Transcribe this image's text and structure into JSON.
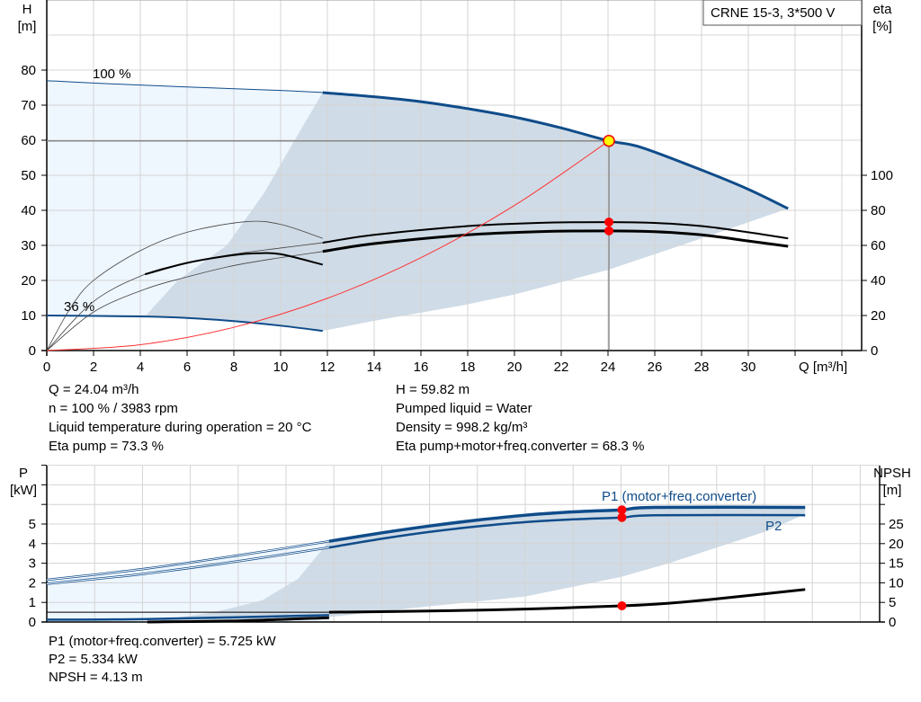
{
  "title_box": "CRNE 15-3, 3*500 V",
  "colors": {
    "curve_blue": "#0f4c8a",
    "shade_light": "#eef6fe",
    "shade_dark": "#cfdbe6",
    "grid": "#d4d4d4",
    "system_curve": "#ff3333",
    "op_point": "#ff0000",
    "duty_point_fill": "#ffff00"
  },
  "chart_data": [
    {
      "type": "line",
      "x_label": "Q [m³/h]",
      "y_label": "H",
      "y_unit": "[m]",
      "y2_label": "eta",
      "y2_unit": "[%]",
      "xlim": [
        0,
        35
      ],
      "ylim": [
        0,
        100
      ],
      "y2lim": [
        0,
        200
      ],
      "x_ticks": [
        "0",
        "2",
        "4",
        "6",
        "8",
        "10",
        "12",
        "14",
        "16",
        "18",
        "20",
        "22",
        "24",
        "26",
        "28",
        "30"
      ],
      "y_ticks": [
        "0",
        "10",
        "20",
        "30",
        "40",
        "50",
        "60",
        "70",
        "80"
      ],
      "y2_ticks": [
        "0",
        "20",
        "40",
        "60",
        "80",
        "100"
      ],
      "grid": true,
      "annotations": {
        "max_speed": "100 %",
        "min_speed": "36 %"
      },
      "series": [
        {
          "name": "100 %",
          "axis": "H",
          "style": "thin",
          "points": [
            [
              0,
              77
            ],
            [
              2,
              76.3
            ],
            [
              6,
              75.2
            ],
            [
              10,
              74.2
            ],
            [
              11.8,
              73.6
            ]
          ]
        },
        {
          "axis": "H",
          "style": "thick",
          "points": [
            [
              11.8,
              73.6
            ],
            [
              14,
              72.4
            ],
            [
              16,
              71
            ],
            [
              18,
              69
            ],
            [
              20,
              66.6
            ],
            [
              22,
              63.5
            ],
            [
              24.04,
              59.82
            ],
            [
              25.4,
              58
            ],
            [
              28,
              51.5
            ],
            [
              30,
              46
            ],
            [
              31.7,
              40.5
            ]
          ]
        },
        {
          "name": "36 %",
          "axis": "H",
          "style": "blue",
          "points": [
            [
              0,
              10
            ],
            [
              4.2,
              9.7
            ],
            [
              6,
              9.3
            ],
            [
              8,
              8.4
            ],
            [
              10,
              7.1
            ],
            [
              11.8,
              5.6
            ]
          ]
        },
        {
          "axis": "eta",
          "style": "thin",
          "points": [
            [
              0,
              0
            ],
            [
              1,
              24
            ],
            [
              2,
              40
            ],
            [
              4,
              57
            ],
            [
              6,
              67.5
            ],
            [
              8.5,
              73.5
            ],
            [
              10,
              72
            ],
            [
              11.8,
              64
            ]
          ]
        },
        {
          "axis": "eta",
          "style": "thin",
          "points": [
            [
              0,
              0
            ],
            [
              2,
              28
            ],
            [
              4.2,
              43.5
            ],
            [
              6,
              50
            ],
            [
              8,
              55
            ],
            [
              10,
              58.5
            ],
            [
              11.8,
              61.5
            ]
          ]
        },
        {
          "axis": "eta",
          "style": "thin",
          "points": [
            [
              0,
              0
            ],
            [
              2,
              22
            ],
            [
              4.2,
              35
            ],
            [
              6,
              42
            ],
            [
              8,
              48.5
            ],
            [
              10,
              53
            ],
            [
              11.8,
              56.5
            ]
          ]
        },
        {
          "axis": "eta",
          "style": "black",
          "points": [
            [
              4.2,
              43.5
            ],
            [
              6,
              50
            ],
            [
              8,
              54.5
            ],
            [
              9,
              55.5
            ],
            [
              10,
              55
            ],
            [
              11.8,
              49
            ]
          ]
        },
        {
          "axis": "eta",
          "style": "black",
          "points": [
            [
              11.8,
              61.5
            ],
            [
              14,
              66
            ],
            [
              18,
              71
            ],
            [
              21,
              72.8
            ],
            [
              24.04,
              73.3
            ],
            [
              26,
              72.8
            ],
            [
              28,
              71
            ],
            [
              30,
              67.5
            ],
            [
              31.7,
              64
            ]
          ]
        },
        {
          "axis": "eta",
          "style": "black-thick",
          "points": [
            [
              11.8,
              56.5
            ],
            [
              14,
              61
            ],
            [
              18,
              66
            ],
            [
              21,
              67.8
            ],
            [
              24.04,
              68.3
            ],
            [
              26,
              67.8
            ],
            [
              28,
              66
            ],
            [
              30,
              62.5
            ],
            [
              31.7,
              59.5
            ]
          ]
        },
        {
          "axis": "H",
          "style": "system",
          "points": [
            [
              0,
              0
            ],
            [
              4,
              1.66
            ],
            [
              8,
              6.62
            ],
            [
              12,
              14.9
            ],
            [
              16,
              26.5
            ],
            [
              20,
              41.4
            ],
            [
              24.04,
              59.82
            ]
          ]
        }
      ],
      "operating_point": {
        "Q": 24.04,
        "H": 59.82,
        "eta_pump": 73.3,
        "eta_total": 68.3
      }
    },
    {
      "type": "line",
      "x_label": "",
      "y_label": "P",
      "y_unit": "[kW]",
      "y2_label": "NPSH",
      "y2_unit": "[m]",
      "xlim": [
        0,
        35
      ],
      "ylim": [
        0,
        8
      ],
      "y2lim": [
        0,
        40
      ],
      "y_ticks": [
        "0",
        "1",
        "2",
        "3",
        "4",
        "5"
      ],
      "y2_ticks": [
        "0",
        "5",
        "10",
        "15",
        "20",
        "25"
      ],
      "grid": true,
      "series": [
        {
          "name": "P1 (motor+freq.converter)",
          "axis": "P",
          "points": [
            [
              0,
              2.15
            ],
            [
              4,
              2.7
            ],
            [
              8,
              3.4
            ],
            [
              11.8,
              4.12
            ],
            [
              14,
              4.55
            ],
            [
              16,
              4.9
            ],
            [
              18,
              5.2
            ],
            [
              20,
              5.45
            ],
            [
              22,
              5.62
            ],
            [
              24.04,
              5.725
            ],
            [
              25.4,
              5.85
            ],
            [
              31.7,
              5.85
            ]
          ]
        },
        {
          "name": "P2",
          "axis": "P",
          "points": [
            [
              0,
              1.95
            ],
            [
              4,
              2.45
            ],
            [
              8,
              3.1
            ],
            [
              11.8,
              3.8
            ],
            [
              14,
              4.25
            ],
            [
              16,
              4.6
            ],
            [
              18,
              4.88
            ],
            [
              20,
              5.1
            ],
            [
              22,
              5.24
            ],
            [
              24.04,
              5.334
            ],
            [
              25.4,
              5.45
            ],
            [
              31.7,
              5.45
            ]
          ]
        },
        {
          "axis": "P",
          "style": "low",
          "points": [
            [
              0,
              0.12
            ],
            [
              4.2,
              0.15
            ],
            [
              11.8,
              0.35
            ]
          ]
        },
        {
          "axis": "NPSH",
          "points": [
            [
              4.2,
              0
            ],
            [
              8,
              0.3
            ],
            [
              11.8,
              1.1
            ]
          ]
        },
        {
          "axis": "NPSH",
          "points": [
            [
              11.8,
              2.5
            ],
            [
              16,
              2.8
            ],
            [
              20,
              3.3
            ],
            [
              24.04,
              4.13
            ],
            [
              26,
              4.8
            ],
            [
              28,
              5.9
            ],
            [
              31.7,
              8.3
            ]
          ]
        }
      ],
      "operating_point": {
        "Q": 24.04,
        "P1": 5.725,
        "P2": 5.334,
        "NPSH": 4.13
      }
    }
  ],
  "info_top_left": [
    "Q = 24.04 m³/h",
    "n = 100 % / 3983 rpm",
    "Liquid temperature during operation = 20 °C",
    "Eta pump = 73.3 %"
  ],
  "info_top_right": [
    "H = 59.82 m",
    "Pumped liquid = Water",
    "Density = 998.2 kg/m³",
    "Eta pump+motor+freq.converter = 68.3 %"
  ],
  "info_bottom": [
    "P1 (motor+freq.converter) = 5.725 kW",
    "P2 = 5.334 kW",
    "NPSH = 4.13 m"
  ]
}
